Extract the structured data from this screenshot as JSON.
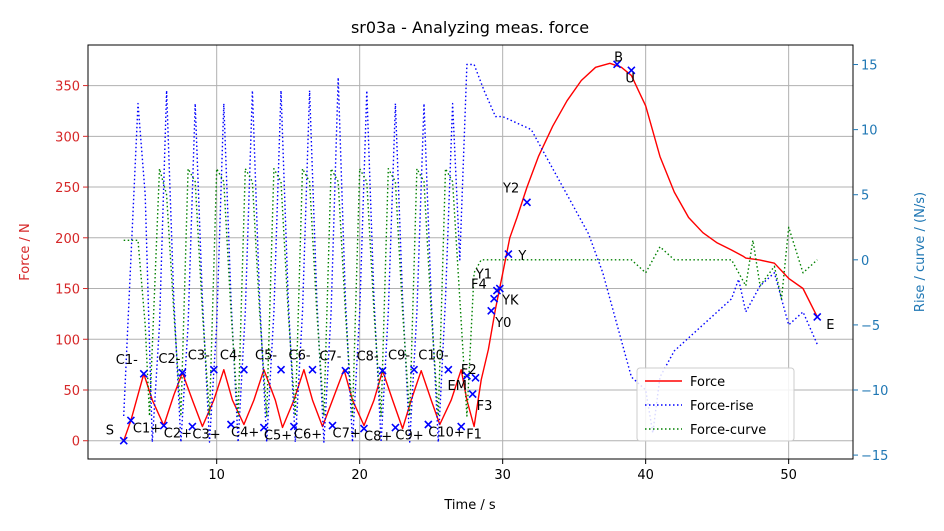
{
  "chart_data": {
    "type": "line",
    "title": "sr03a - Analyzing meas. force",
    "xlabel": "Time / s",
    "ylabel_left": "Force / N",
    "ylabel_right": "Rise / curve /  (N/s)",
    "xlim": [
      1.0,
      54.5
    ],
    "ylim_left": [
      -18,
      390
    ],
    "ylim_right": [
      -15.3,
      16.5
    ],
    "x_ticks": [
      10,
      20,
      30,
      40,
      50
    ],
    "y_ticks_left": [
      0,
      50,
      100,
      150,
      200,
      250,
      300,
      350
    ],
    "y_ticks_right": [
      -15,
      -10,
      -5,
      0,
      5,
      10,
      15
    ],
    "grid": true,
    "legend_position": "lower right",
    "colors": {
      "force": "#ff0000",
      "rise": "#0000ff",
      "curve": "#008000",
      "axis_left": "#d62728",
      "axis_right": "#1f77b4",
      "marker": "#0000ff"
    },
    "series": [
      {
        "name": "Force",
        "axis": "left",
        "style": "solid",
        "x": [
          3.5,
          4.0,
          4.9,
          5.5,
          6.3,
          7.0,
          7.6,
          8.3,
          9.0,
          9.8,
          10.5,
          11.1,
          11.9,
          12.6,
          13.3,
          14.1,
          14.6,
          15.4,
          16.1,
          16.7,
          17.4,
          18.1,
          18.9,
          19.5,
          20.3,
          21.0,
          21.6,
          22.3,
          23.0,
          23.6,
          24.3,
          25.0,
          25.6,
          26.4,
          27.1,
          27.5,
          28.0,
          28.5,
          29.0,
          29.5,
          30.0,
          30.5,
          31.0,
          31.7,
          32.5,
          33.5,
          34.5,
          35.5,
          36.5,
          37.5,
          38.3,
          39.0,
          39.5,
          40.0,
          41.0,
          42.0,
          43.0,
          44.0,
          45.0,
          46.0,
          46.8,
          47.0,
          48.0,
          49.0,
          50.0,
          51.0,
          52.0
        ],
        "values": [
          0,
          20,
          66,
          40,
          15,
          45,
          67,
          40,
          14,
          40,
          70,
          40,
          16,
          40,
          70,
          40,
          13,
          40,
          70,
          40,
          14,
          40,
          70,
          40,
          15,
          40,
          69,
          40,
          12,
          40,
          69,
          40,
          16,
          40,
          70,
          40,
          14,
          60,
          90,
          130,
          165,
          200,
          220,
          250,
          280,
          310,
          335,
          355,
          368,
          372,
          368,
          360,
          345,
          330,
          280,
          245,
          220,
          205,
          195,
          188,
          182,
          180,
          178,
          175,
          160,
          150,
          122
        ]
      },
      {
        "name": "Force-rise",
        "axis": "right",
        "style": "dotted",
        "x": [
          3.5,
          4.5,
          5.0,
          5.5,
          6.0,
          6.5,
          7.0,
          7.5,
          8.0,
          8.5,
          9.0,
          9.5,
          10.0,
          10.5,
          11.0,
          11.5,
          12.0,
          12.5,
          13.0,
          13.5,
          14.0,
          14.5,
          15.0,
          15.5,
          16.0,
          16.5,
          17.0,
          17.5,
          18.0,
          18.5,
          19.0,
          19.5,
          20.0,
          20.5,
          21.0,
          21.5,
          22.0,
          22.5,
          23.0,
          23.5,
          24.0,
          24.5,
          25.0,
          25.5,
          26.0,
          26.5,
          27.0,
          27.5,
          28.0,
          28.7,
          29.5,
          30.0,
          31.0,
          32.0,
          33.0,
          34.0,
          35.0,
          36.0,
          37.0,
          38.0,
          39.0,
          40.0,
          40.5,
          41.0,
          42.0,
          43.0,
          44.0,
          45.0,
          46.0,
          46.5,
          47.0,
          48.0,
          49.0,
          49.5,
          50.0,
          51.0,
          52.0
        ],
        "values": [
          -12,
          12,
          5,
          -14,
          -5,
          13,
          -3,
          -14,
          -5,
          12,
          -3,
          -14,
          -5,
          12,
          -3,
          -14,
          -4,
          13,
          -3,
          -14,
          -4,
          13,
          -3,
          -14,
          -4,
          13,
          -3,
          -14,
          -4,
          14,
          -3,
          -14,
          -4,
          13,
          -3,
          -14,
          -4,
          12,
          -3,
          -14,
          -4,
          12,
          -3,
          -14,
          -3,
          12,
          0,
          15,
          15,
          13,
          11,
          11,
          10.5,
          10,
          8,
          6,
          4,
          2,
          -1,
          -5,
          -9,
          -10,
          -13.3,
          -9,
          -7,
          -6,
          -5,
          -4,
          -3,
          -1.5,
          -4,
          -2,
          -1,
          -3,
          -5,
          -4,
          -6.5
        ]
      },
      {
        "name": "Force-curve",
        "axis": "right",
        "style": "dotted",
        "x": [
          3.5,
          4.5,
          5.0,
          5.3,
          6.0,
          6.5,
          7.0,
          7.5,
          8.0,
          8.5,
          9.0,
          9.5,
          10.0,
          10.5,
          11.0,
          11.5,
          12.0,
          12.5,
          13.0,
          13.5,
          14.0,
          14.5,
          15.0,
          15.5,
          16.0,
          16.5,
          17.0,
          17.5,
          18.0,
          18.5,
          19.0,
          19.5,
          20.0,
          20.5,
          21.0,
          21.5,
          22.0,
          22.5,
          23.0,
          23.5,
          24.0,
          24.5,
          25.0,
          25.5,
          26.0,
          26.5,
          27.0,
          27.5,
          28.0,
          28.5,
          29.0,
          30.0,
          31.0,
          32.0,
          33.0,
          34.0,
          35.0,
          36.0,
          37.0,
          38.0,
          39.0,
          40.0,
          41.0,
          42.0,
          43.0,
          44.0,
          45.0,
          46.0,
          47.0,
          47.5,
          48.0,
          49.0,
          49.5,
          50.0,
          51.0,
          52.0
        ],
        "values": [
          1.5,
          1.5,
          -5,
          -12,
          7,
          5,
          -4,
          -12,
          7,
          6,
          -4,
          -12,
          7,
          6,
          -4,
          -12,
          7,
          6,
          -4,
          -12,
          7,
          6,
          -4,
          -12,
          7,
          6,
          -4,
          -12,
          7,
          6,
          -4,
          -12,
          7,
          6,
          -4,
          -12,
          7,
          6,
          -4,
          -12,
          7,
          6,
          -4,
          -12,
          7,
          6,
          -3,
          -12,
          -1,
          0,
          0,
          0,
          0,
          0,
          0,
          0,
          0,
          0,
          0,
          0,
          0,
          -1,
          1,
          0,
          0,
          0,
          0,
          0,
          -2,
          1.5,
          -2,
          -0.5,
          -3,
          2.5,
          -1,
          0
        ]
      }
    ],
    "marked_points": [
      {
        "label": "S",
        "x": 3.5,
        "y": 0
      },
      {
        "label": "C1+",
        "x": 4.0,
        "y": 20
      },
      {
        "label": "C1-",
        "x": 4.9,
        "y": 66
      },
      {
        "label": "C2+",
        "x": 6.3,
        "y": 15
      },
      {
        "label": "C2-",
        "x": 7.6,
        "y": 67
      },
      {
        "label": "C3+",
        "x": 8.3,
        "y": 14
      },
      {
        "label": "C3-",
        "x": 9.8,
        "y": 70
      },
      {
        "label": "C4+",
        "x": 11.0,
        "y": 16
      },
      {
        "label": "C4-",
        "x": 11.9,
        "y": 70
      },
      {
        "label": "C5+",
        "x": 13.3,
        "y": 13
      },
      {
        "label": "C5-",
        "x": 14.5,
        "y": 70
      },
      {
        "label": "C6+",
        "x": 15.4,
        "y": 14
      },
      {
        "label": "C6-",
        "x": 16.7,
        "y": 70
      },
      {
        "label": "C7+",
        "x": 18.1,
        "y": 15
      },
      {
        "label": "C7-",
        "x": 19.0,
        "y": 69
      },
      {
        "label": "C8+",
        "x": 20.3,
        "y": 12
      },
      {
        "label": "C8-",
        "x": 21.6,
        "y": 69
      },
      {
        "label": "C9+",
        "x": 22.5,
        "y": 13
      },
      {
        "label": "C9-",
        "x": 23.8,
        "y": 70
      },
      {
        "label": "C10+",
        "x": 24.8,
        "y": 16
      },
      {
        "label": "C10-",
        "x": 26.2,
        "y": 70
      },
      {
        "label": "F1",
        "x": 27.1,
        "y": 14
      },
      {
        "label": "F2",
        "x": 27.5,
        "y": 64
      },
      {
        "label": "EM",
        "x": 28.1,
        "y": 62
      },
      {
        "label": "F3",
        "x": 27.9,
        "y": 46
      },
      {
        "label": "Y0",
        "x": 29.2,
        "y": 128
      },
      {
        "label": "YK",
        "x": 29.4,
        "y": 140
      },
      {
        "label": "F4",
        "x": 29.6,
        "y": 148
      },
      {
        "label": "Y1",
        "x": 29.8,
        "y": 150
      },
      {
        "label": "Y",
        "x": 30.4,
        "y": 184
      },
      {
        "label": "Y2",
        "x": 31.7,
        "y": 235
      },
      {
        "label": "B",
        "x": 38.0,
        "y": 371
      },
      {
        "label": "U",
        "x": 39.0,
        "y": 365
      },
      {
        "label": "E",
        "x": 52.0,
        "y": 122
      }
    ]
  }
}
